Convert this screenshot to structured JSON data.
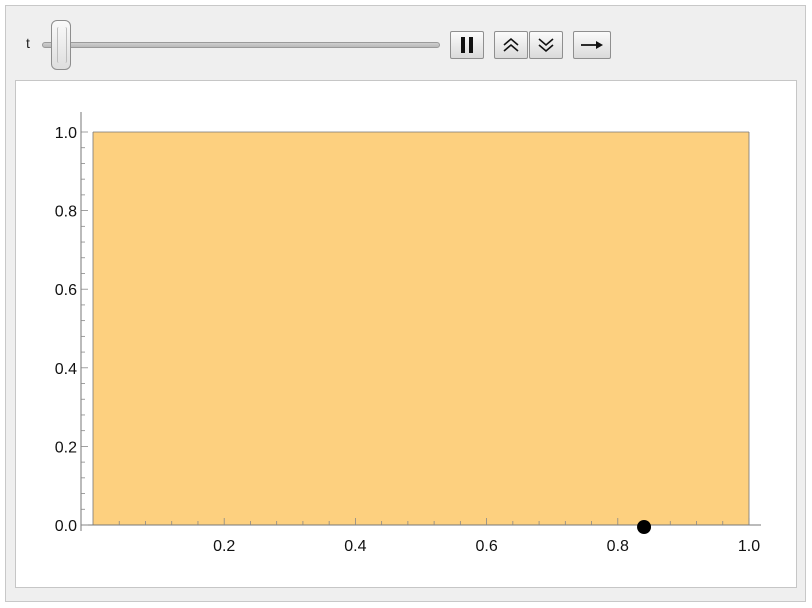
{
  "controls": {
    "slider_label": "t",
    "slider_value": 0.0,
    "pause_icon": "pause-icon",
    "faster_icon": "double-chevron-up-icon",
    "slower_icon": "double-chevron-down-icon",
    "direction_icon": "right-arrow-icon"
  },
  "chart_data": {
    "type": "scatter",
    "title": "",
    "xlabel": "",
    "ylabel": "",
    "xlim": [
      0.0,
      1.0
    ],
    "ylim": [
      0.0,
      1.0
    ],
    "x_ticks": [
      "0.2",
      "0.4",
      "0.6",
      "0.8",
      "1.0"
    ],
    "y_ticks": [
      "0.0",
      "0.2",
      "0.4",
      "0.6",
      "0.8",
      "1.0"
    ],
    "filled_region": {
      "x": [
        0.0,
        1.0
      ],
      "y": [
        0.0,
        1.0
      ],
      "color": "#fdd07f"
    },
    "points": [
      {
        "x": 0.84,
        "y": 0.0,
        "color": "#000000"
      }
    ],
    "grid": false,
    "legend": "none"
  }
}
